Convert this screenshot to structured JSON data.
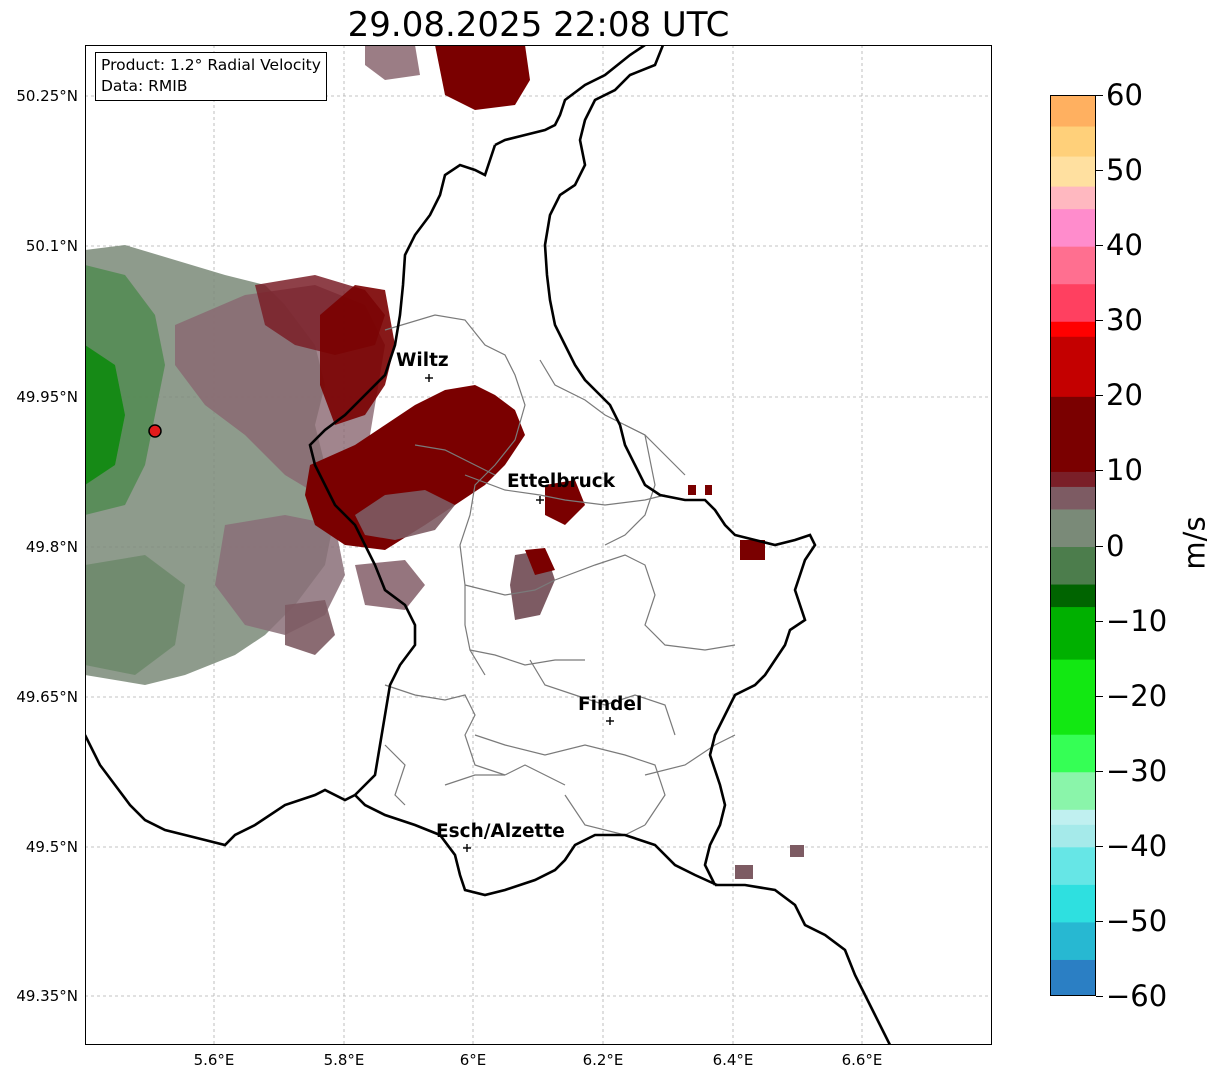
{
  "title": "29.08.2025 22:08 UTC",
  "info": {
    "product": "Product: 1.2° Radial Velocity",
    "data_source": "Data: RMIB"
  },
  "lat_ticks": [
    "50.25°N",
    "50.1°N",
    "49.95°N",
    "49.8°N",
    "49.65°N",
    "49.5°N",
    "49.35°N"
  ],
  "lon_ticks": [
    "5.6°E",
    "5.8°E",
    "6°E",
    "6.2°E",
    "6.4°E",
    "6.6°E"
  ],
  "cities": {
    "wiltz": "Wiltz",
    "ettelbruck": "Ettelbruck",
    "findel": "Findel",
    "esch": "Esch/Alzette"
  },
  "colorbar": {
    "unit": "m/s",
    "ticks": [
      "60",
      "50",
      "40",
      "30",
      "20",
      "10",
      "0",
      "−10",
      "−20",
      "−30",
      "−40",
      "−50",
      "−60"
    ],
    "range": [
      -60,
      60
    ],
    "stops": [
      {
        "v": -60,
        "c": "#2b7fc4"
      },
      {
        "v": -55,
        "c": "#27b8d2"
      },
      {
        "v": -50,
        "c": "#2ee0e0"
      },
      {
        "v": -45,
        "c": "#66e6e6"
      },
      {
        "v": -40,
        "c": "#a5eaea"
      },
      {
        "v": -37,
        "c": "#c0f0f0"
      },
      {
        "v": -35,
        "c": "#8af5aa"
      },
      {
        "v": -30,
        "c": "#35ff55"
      },
      {
        "v": -25,
        "c": "#12e812"
      },
      {
        "v": -15,
        "c": "#00b000"
      },
      {
        "v": -8,
        "c": "#006400"
      },
      {
        "v": -5,
        "c": "#4c7d4c"
      },
      {
        "v": 0,
        "c": "#7a8a78"
      },
      {
        "v": 5,
        "c": "#7d5b63"
      },
      {
        "v": 8,
        "c": "#7a1f28"
      },
      {
        "v": 10,
        "c": "#7a0000"
      },
      {
        "v": 20,
        "c": "#c40000"
      },
      {
        "v": 28,
        "c": "#ff0000"
      },
      {
        "v": 30,
        "c": "#ff4060"
      },
      {
        "v": 35,
        "c": "#ff6f90"
      },
      {
        "v": 40,
        "c": "#ff8ccc"
      },
      {
        "v": 45,
        "c": "#ffb8c0"
      },
      {
        "v": 48,
        "c": "#ffe0a0"
      },
      {
        "v": 52,
        "c": "#ffd07a"
      },
      {
        "v": 56,
        "c": "#ffb060"
      },
      {
        "v": 60,
        "c": "#ff9a4e"
      }
    ]
  },
  "map_data": {
    "lon_range": [
      5.4,
      6.8
    ],
    "lat_range": [
      49.3,
      50.3
    ],
    "radar_site": {
      "lon": 5.505,
      "lat": 49.914
    }
  }
}
